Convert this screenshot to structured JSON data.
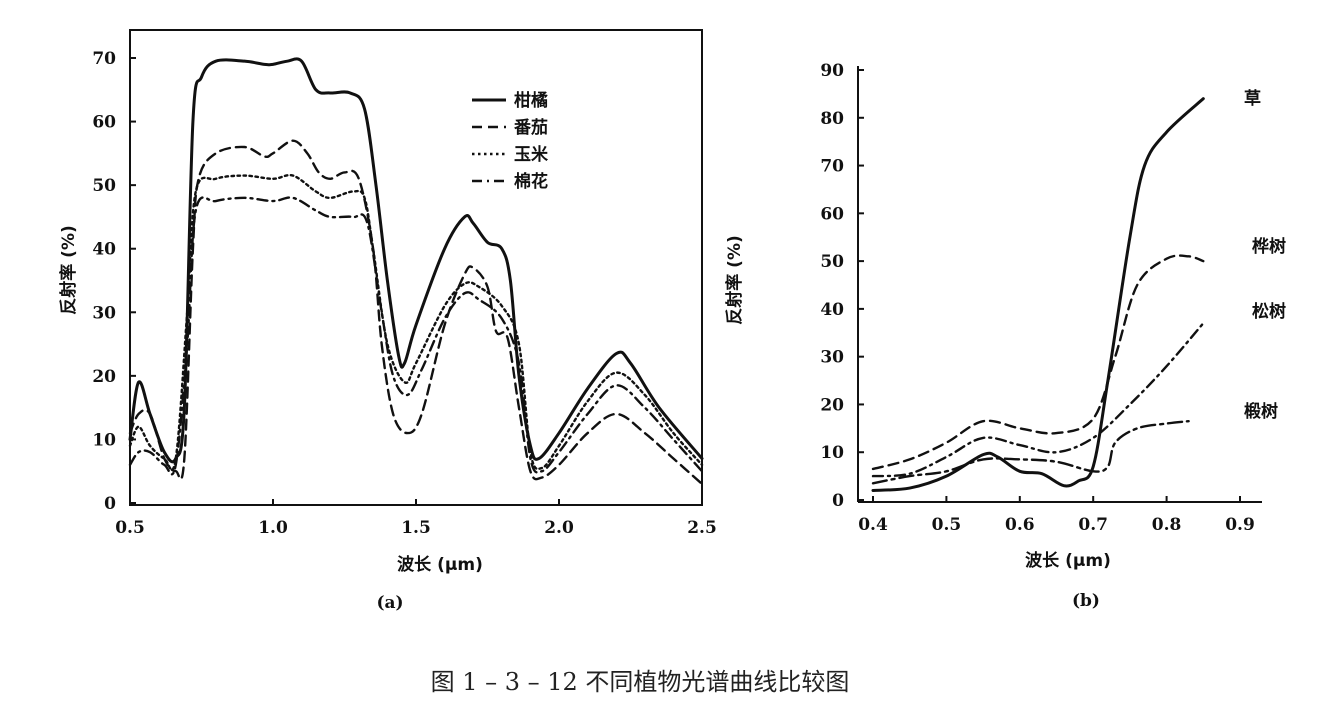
{
  "caption": "图 1 – 3 – 12    不同植物光谱曲线比较图",
  "chart_data": [
    {
      "type": "line",
      "panel_label": "(a)",
      "xlabel": "波长 (μm)",
      "ylabel": "反射率 (%)",
      "xlim": [
        0.5,
        2.5
      ],
      "ylim": [
        0,
        70
      ],
      "xticks": [
        "0.5",
        "1.0",
        "1.5",
        "2.0",
        "2.5"
      ],
      "yticks": [
        "0",
        "10",
        "20",
        "30",
        "40",
        "50",
        "60",
        "70"
      ],
      "legend_position": "top-right",
      "series": [
        {
          "name": "柑橘",
          "style": "solid",
          "x": [
            0.5,
            0.53,
            0.57,
            0.62,
            0.66,
            0.69,
            0.72,
            0.75,
            0.8,
            0.9,
            0.97,
            1.0,
            1.05,
            1.1,
            1.15,
            1.2,
            1.27,
            1.32,
            1.36,
            1.4,
            1.44,
            1.46,
            1.5,
            1.6,
            1.67,
            1.7,
            1.75,
            1.8,
            1.83,
            1.86,
            1.9,
            1.93,
            2.0,
            2.1,
            2.2,
            2.25,
            2.35,
            2.5
          ],
          "y": [
            10,
            19,
            14,
            8,
            7,
            15,
            60,
            67,
            69.5,
            69.5,
            69,
            69,
            69.5,
            69.5,
            65,
            64.5,
            64.5,
            62,
            50,
            35,
            23,
            22,
            28,
            40,
            45,
            44,
            41,
            40,
            35,
            20,
            9,
            7,
            11,
            18,
            23.5,
            22,
            15,
            7
          ]
        },
        {
          "name": "番茄",
          "style": "dashed",
          "x": [
            0.5,
            0.53,
            0.57,
            0.62,
            0.66,
            0.69,
            0.72,
            0.74,
            0.8,
            0.9,
            0.97,
            1.0,
            1.07,
            1.12,
            1.16,
            1.2,
            1.25,
            1.3,
            1.35,
            1.38,
            1.42,
            1.47,
            1.52,
            1.6,
            1.67,
            1.7,
            1.75,
            1.78,
            1.82,
            1.86,
            1.9,
            1.94,
            2.0,
            2.1,
            2.2,
            2.3,
            2.4,
            2.5
          ],
          "y": [
            11,
            14,
            14,
            7,
            5,
            7,
            40,
            51,
            55,
            56,
            54.5,
            55,
            57,
            55,
            52,
            51,
            52,
            51,
            40,
            25,
            14,
            11,
            14,
            28,
            36,
            37,
            34,
            27,
            26,
            15,
            5,
            4,
            6,
            11,
            14,
            11,
            7,
            3
          ]
        },
        {
          "name": "玉米",
          "style": "dotted",
          "x": [
            0.5,
            0.53,
            0.57,
            0.62,
            0.66,
            0.7,
            0.73,
            0.8,
            0.9,
            1.0,
            1.07,
            1.15,
            1.2,
            1.28,
            1.32,
            1.35,
            1.4,
            1.46,
            1.5,
            1.6,
            1.67,
            1.72,
            1.8,
            1.86,
            1.9,
            1.94,
            2.0,
            2.1,
            2.2,
            2.3,
            2.4,
            2.5
          ],
          "y": [
            9,
            12,
            9,
            7,
            7,
            30,
            49,
            51,
            51.5,
            51,
            51.5,
            49,
            48,
            49,
            48,
            40,
            25,
            19,
            22,
            31,
            34.5,
            34,
            31,
            25,
            8,
            5.5,
            9,
            16,
            20.5,
            17,
            11,
            6
          ]
        },
        {
          "name": "棉花",
          "style": "dash-dot",
          "x": [
            0.5,
            0.53,
            0.57,
            0.62,
            0.66,
            0.7,
            0.73,
            0.8,
            0.9,
            1.0,
            1.07,
            1.15,
            1.2,
            1.28,
            1.33,
            1.38,
            1.42,
            1.47,
            1.52,
            1.6,
            1.67,
            1.72,
            1.8,
            1.86,
            1.9,
            1.94,
            2.0,
            2.1,
            2.2,
            2.3,
            2.4,
            2.5
          ],
          "y": [
            6,
            8,
            8,
            6,
            6,
            25,
            46,
            47.5,
            48,
            47.5,
            48,
            46,
            45,
            45,
            44,
            30,
            20,
            17,
            21,
            29,
            33,
            32,
            29,
            22,
            7,
            5,
            8,
            14,
            18.5,
            15,
            10,
            5
          ]
        }
      ]
    },
    {
      "type": "line",
      "panel_label": "(b)",
      "xlabel": "波长 (μm)",
      "ylabel": "反射率 (%)",
      "xlim": [
        0.4,
        0.9
      ],
      "ylim": [
        0,
        90
      ],
      "xticks": [
        "0.4",
        "0.5",
        "0.6",
        "0.7",
        "0.8",
        "0.9"
      ],
      "yticks": [
        "0",
        "10",
        "20",
        "30",
        "40",
        "50",
        "60",
        "70",
        "80",
        "90"
      ],
      "legend_position": "right (line-end labels)",
      "series": [
        {
          "name": "草",
          "style": "solid",
          "x": [
            0.4,
            0.45,
            0.5,
            0.55,
            0.57,
            0.6,
            0.63,
            0.66,
            0.68,
            0.7,
            0.72,
            0.75,
            0.77,
            0.8,
            0.85
          ],
          "y": [
            2,
            2.5,
            5,
            9.5,
            9,
            6,
            5.5,
            3,
            4,
            7,
            25,
            55,
            70,
            77,
            84
          ]
        },
        {
          "name": "桦树",
          "style": "dashed",
          "x": [
            0.4,
            0.45,
            0.5,
            0.55,
            0.6,
            0.65,
            0.7,
            0.73,
            0.76,
            0.8,
            0.83,
            0.85
          ],
          "y": [
            6.5,
            8.5,
            12,
            16.5,
            15,
            14,
            17,
            30,
            45,
            50.5,
            51,
            50
          ]
        },
        {
          "name": "松树",
          "style": "dash-dot",
          "x": [
            0.4,
            0.45,
            0.5,
            0.55,
            0.6,
            0.65,
            0.7,
            0.75,
            0.8,
            0.85
          ],
          "y": [
            5,
            5.5,
            9,
            13,
            11.5,
            10,
            13,
            20,
            28,
            37
          ]
        },
        {
          "name": "椴树",
          "style": "long-dash-dot",
          "x": [
            0.4,
            0.45,
            0.5,
            0.55,
            0.6,
            0.65,
            0.7,
            0.72,
            0.73,
            0.76,
            0.8,
            0.83
          ],
          "y": [
            3.5,
            5,
            6,
            8.5,
            8.5,
            8,
            6,
            7,
            12,
            15,
            16,
            16.5
          ]
        }
      ]
    }
  ]
}
